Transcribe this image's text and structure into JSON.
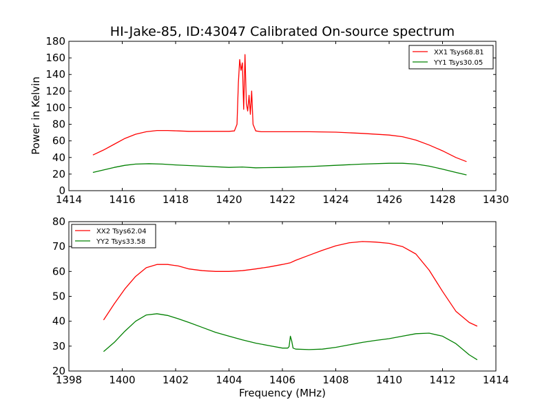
{
  "figure": {
    "title": "HI-Jake-85, ID:43047 Calibrated On-source spectrum",
    "xlabel": "Frequency (MHz)",
    "top_ylabel": "Power in Kelvin"
  },
  "chart_data": [
    {
      "type": "line",
      "title": "HI-Jake-85, ID:43047 Calibrated On-source spectrum",
      "xlabel": "",
      "ylabel": "Power in Kelvin",
      "xlim": [
        1414,
        1430
      ],
      "ylim": [
        0,
        180
      ],
      "xticks": [
        1414,
        1416,
        1418,
        1420,
        1422,
        1424,
        1426,
        1428,
        1430
      ],
      "yticks": [
        0,
        20,
        40,
        60,
        80,
        100,
        120,
        140,
        160,
        180
      ],
      "grid": false,
      "legend_position": "top-right",
      "series": [
        {
          "name": "XX1 Tsys68.81",
          "color": "#ff0000",
          "x": [
            1414.9,
            1415.3,
            1415.7,
            1416.1,
            1416.5,
            1416.9,
            1417.3,
            1417.7,
            1418.1,
            1418.5,
            1418.9,
            1419.3,
            1419.7,
            1420.0,
            1420.2,
            1420.3,
            1420.35,
            1420.4,
            1420.45,
            1420.5,
            1420.55,
            1420.6,
            1420.65,
            1420.7,
            1420.75,
            1420.8,
            1420.85,
            1420.9,
            1421.0,
            1421.2,
            1421.5,
            1422.0,
            1423.0,
            1424.0,
            1425.0,
            1426.0,
            1426.5,
            1427.0,
            1427.5,
            1428.0,
            1428.5,
            1428.9
          ],
          "y": [
            43,
            49,
            56,
            63,
            68,
            71,
            72.5,
            72.5,
            72,
            71.5,
            71.5,
            71.5,
            71.5,
            71.5,
            72,
            80,
            130,
            158,
            145,
            154,
            98,
            164,
            105,
            96,
            115,
            92,
            120,
            80,
            72,
            71,
            71,
            71,
            71,
            70.5,
            69,
            67,
            65,
            61,
            55,
            48,
            40,
            35
          ]
        },
        {
          "name": "YY1 Tsys30.05",
          "color": "#008000",
          "x": [
            1414.9,
            1415.3,
            1415.7,
            1416.1,
            1416.5,
            1417.0,
            1417.5,
            1418.0,
            1419.0,
            1420.0,
            1420.5,
            1421.0,
            1422.0,
            1423.0,
            1424.0,
            1425.0,
            1426.0,
            1426.5,
            1427.0,
            1427.5,
            1428.0,
            1428.5,
            1428.9
          ],
          "y": [
            22,
            25,
            28,
            30.5,
            32,
            32.5,
            32,
            31,
            29.5,
            28,
            28.5,
            27.5,
            28,
            29,
            30.5,
            32,
            33,
            33,
            32,
            29.5,
            26,
            22,
            19
          ]
        }
      ]
    },
    {
      "type": "line",
      "title": "",
      "xlabel": "Frequency (MHz)",
      "ylabel": "",
      "xlim": [
        1398,
        1414
      ],
      "ylim": [
        20,
        80
      ],
      "xticks": [
        1398,
        1400,
        1402,
        1404,
        1406,
        1408,
        1410,
        1412,
        1414
      ],
      "yticks": [
        20,
        30,
        40,
        50,
        60,
        70,
        80
      ],
      "grid": false,
      "legend_position": "top-left",
      "series": [
        {
          "name": "XX2 Tsys62.04",
          "color": "#ff0000",
          "x": [
            1399.3,
            1399.7,
            1400.1,
            1400.5,
            1400.9,
            1401.3,
            1401.7,
            1402.1,
            1402.5,
            1403.0,
            1403.5,
            1404.0,
            1404.5,
            1405.0,
            1405.5,
            1406.0,
            1406.3,
            1406.5,
            1407.0,
            1407.5,
            1408.0,
            1408.5,
            1409.0,
            1409.5,
            1410.0,
            1410.5,
            1411.0,
            1411.5,
            1412.0,
            1412.5,
            1413.0,
            1413.3
          ],
          "y": [
            40.5,
            47,
            53,
            58,
            61.5,
            62.8,
            62.8,
            62.2,
            61,
            60.3,
            60,
            60,
            60.3,
            61,
            61.8,
            62.8,
            63.5,
            64.5,
            66.5,
            68.5,
            70.3,
            71.5,
            72,
            71.8,
            71.3,
            70,
            67,
            60.5,
            52,
            44,
            39.5,
            38
          ]
        },
        {
          "name": "YY2 Tsys33.58",
          "color": "#008000",
          "x": [
            1399.3,
            1399.7,
            1400.1,
            1400.5,
            1400.9,
            1401.3,
            1401.7,
            1402.1,
            1402.5,
            1403.0,
            1403.5,
            1404.0,
            1404.5,
            1405.0,
            1405.5,
            1406.0,
            1406.2,
            1406.25,
            1406.3,
            1406.35,
            1406.4,
            1406.5,
            1407.0,
            1407.5,
            1408.0,
            1408.5,
            1409.0,
            1409.5,
            1410.0,
            1410.5,
            1411.0,
            1411.5,
            1412.0,
            1412.5,
            1413.0,
            1413.3
          ],
          "y": [
            27.8,
            31.5,
            36,
            40,
            42.5,
            43,
            42.3,
            41,
            39.5,
            37.5,
            35.5,
            34,
            32.5,
            31.2,
            30.2,
            29.2,
            29.2,
            29.8,
            34,
            32,
            29.2,
            28.8,
            28.6,
            28.8,
            29.5,
            30.5,
            31.5,
            32.3,
            33,
            34,
            35,
            35.2,
            34,
            31,
            26.5,
            24.5
          ]
        }
      ]
    }
  ]
}
